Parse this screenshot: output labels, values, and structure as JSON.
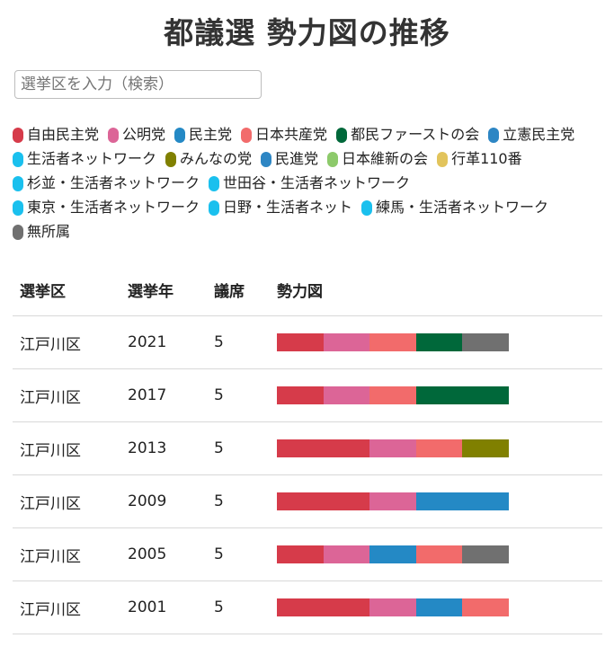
{
  "title": "都議選 勢力図の推移",
  "search": {
    "placeholder": "選挙区を入力（検索）"
  },
  "legend": [
    {
      "label": "自由民主党",
      "color": "#d63b4a"
    },
    {
      "label": "公明党",
      "color": "#dc6597"
    },
    {
      "label": "民主党",
      "color": "#2489c5"
    },
    {
      "label": "日本共産党",
      "color": "#f26b6b"
    },
    {
      "label": "都民ファーストの会",
      "color": "#00683a"
    },
    {
      "label": "立憲民主党",
      "color": "#2d86c4"
    },
    {
      "label": "生活者ネットワーク",
      "color": "#1ac0ee"
    },
    {
      "label": "みんなの党",
      "color": "#808000"
    },
    {
      "label": "民進党",
      "color": "#2d86c4"
    },
    {
      "label": "日本維新の会",
      "color": "#8dca6b"
    },
    {
      "label": "行革110番",
      "color": "#e2c45c"
    },
    {
      "label": "杉並・生活者ネットワーク",
      "color": "#1ac0ee"
    },
    {
      "label": "世田谷・生活者ネットワーク",
      "color": "#1ac0ee"
    },
    {
      "label": "東京・生活者ネットワーク",
      "color": "#1ac0ee"
    },
    {
      "label": "日野・生活者ネット",
      "color": "#1ac0ee"
    },
    {
      "label": "練馬・生活者ネットワーク",
      "color": "#1ac0ee"
    },
    {
      "label": "無所属",
      "color": "#707070"
    }
  ],
  "table": {
    "headers": [
      "選挙区",
      "選挙年",
      "議席",
      "勢力図"
    ],
    "rows": [
      {
        "district": "江戸川区",
        "year": "2021",
        "seats": "5",
        "segments": [
          "#d63b4a",
          "#dc6597",
          "#f26b6b",
          "#00683a",
          "#707070"
        ]
      },
      {
        "district": "江戸川区",
        "year": "2017",
        "seats": "5",
        "segments": [
          "#d63b4a",
          "#dc6597",
          "#f26b6b",
          "#00683a",
          "#00683a"
        ]
      },
      {
        "district": "江戸川区",
        "year": "2013",
        "seats": "5",
        "segments": [
          "#d63b4a",
          "#d63b4a",
          "#dc6597",
          "#f26b6b",
          "#808000"
        ]
      },
      {
        "district": "江戸川区",
        "year": "2009",
        "seats": "5",
        "segments": [
          "#d63b4a",
          "#d63b4a",
          "#dc6597",
          "#2489c5",
          "#2489c5"
        ]
      },
      {
        "district": "江戸川区",
        "year": "2005",
        "seats": "5",
        "segments": [
          "#d63b4a",
          "#dc6597",
          "#2489c5",
          "#f26b6b",
          "#707070"
        ]
      },
      {
        "district": "江戸川区",
        "year": "2001",
        "seats": "5",
        "segments": [
          "#d63b4a",
          "#d63b4a",
          "#dc6597",
          "#2489c5",
          "#f26b6b"
        ]
      }
    ]
  }
}
